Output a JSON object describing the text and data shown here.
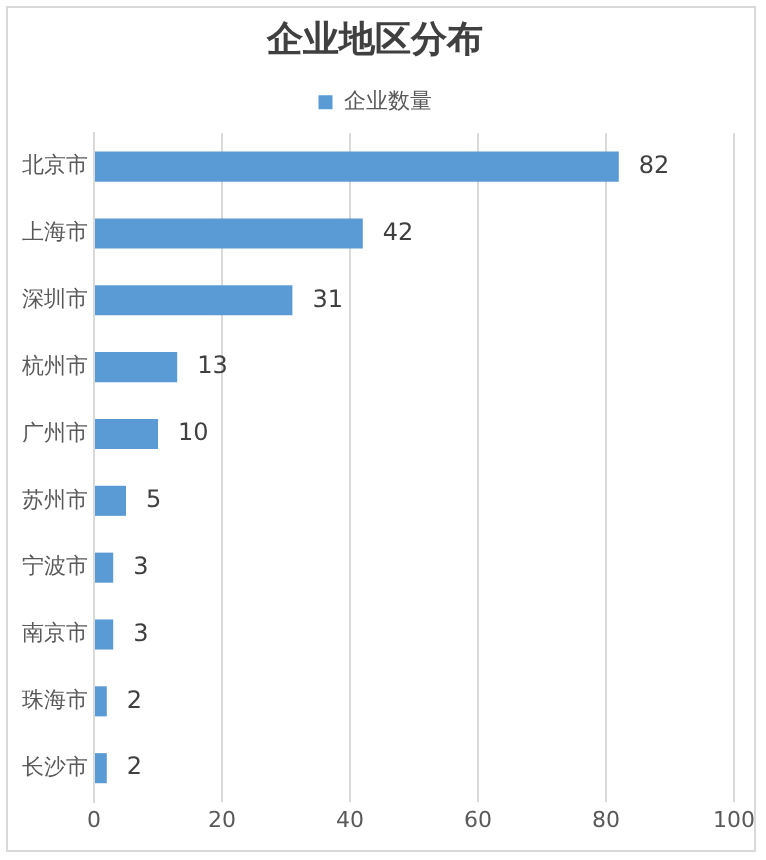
{
  "chart_data": {
    "type": "bar",
    "orientation": "horizontal",
    "title": "企业地区分布",
    "categories": [
      "北京市",
      "上海市",
      "深圳市",
      "杭州市",
      "广州市",
      "苏州市",
      "宁波市",
      "南京市",
      "珠海市",
      "长沙市"
    ],
    "series": [
      {
        "name": "企业数量",
        "color": "#5b9bd5",
        "values": [
          82,
          42,
          31,
          13,
          10,
          5,
          3,
          3,
          2,
          2
        ]
      }
    ],
    "xlim": [
      0,
      100
    ],
    "xticks": [
      0,
      20,
      40,
      60,
      80,
      100
    ],
    "grid": "x",
    "legend": "top",
    "data_labels": true
  }
}
